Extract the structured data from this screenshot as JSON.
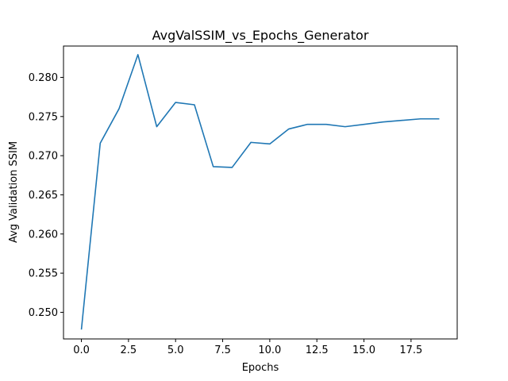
{
  "chart_data": {
    "type": "line",
    "title": "AvgValSSIM_vs_Epochs_Generator",
    "xlabel": "Epochs",
    "ylabel": "Avg Validation SSIM",
    "xlim": [
      -0.95,
      19.95
    ],
    "ylim": [
      0.2466,
      0.284
    ],
    "x_ticks": [
      0.0,
      2.5,
      5.0,
      7.5,
      10.0,
      12.5,
      15.0,
      17.5
    ],
    "x_tick_labels": [
      "0.0",
      "2.5",
      "5.0",
      "7.5",
      "10.0",
      "12.5",
      "15.0",
      "17.5"
    ],
    "y_ticks": [
      0.25,
      0.255,
      0.26,
      0.265,
      0.27,
      0.275,
      0.28
    ],
    "y_tick_labels": [
      "0.250",
      "0.255",
      "0.260",
      "0.265",
      "0.270",
      "0.275",
      "0.280"
    ],
    "grid": false,
    "series": [
      {
        "color": "#1f77b4",
        "x": [
          0,
          1,
          2,
          3,
          4,
          5,
          6,
          7,
          8,
          9,
          10,
          11,
          12,
          13,
          14,
          15,
          16,
          17,
          18,
          19
        ],
        "values": [
          0.2478,
          0.2716,
          0.276,
          0.2829,
          0.2737,
          0.2768,
          0.2765,
          0.2686,
          0.2685,
          0.2717,
          0.2715,
          0.2734,
          0.274,
          0.274,
          0.2737,
          0.274,
          0.2743,
          0.2745,
          0.2747,
          0.2747
        ]
      }
    ]
  }
}
